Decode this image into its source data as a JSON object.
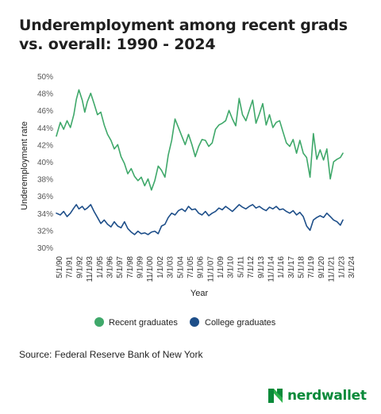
{
  "chart_data": {
    "type": "line",
    "title": "Underemployment among recent grads vs. overall: 1990 - 2024",
    "xlabel": "Year",
    "ylabel": "Underemployment rate",
    "ylim": [
      30,
      50
    ],
    "yticks": [
      "30%",
      "32%",
      "34%",
      "36%",
      "38%",
      "40%",
      "42%",
      "44%",
      "46%",
      "48%",
      "50%"
    ],
    "xticks": [
      "5/1/90",
      "7/1/91",
      "9/1/92",
      "11/1/93",
      "1/1/95",
      "3/1/96",
      "5/1/97",
      "7/1/98",
      "9/1/99",
      "11/1/00",
      "1/1/02",
      "3/1/03",
      "5/1/04",
      "7/1/05",
      "9/1/06",
      "11/1/07",
      "1/1/09",
      "3/1/10",
      "5/1/11",
      "7/1/12",
      "9/1/13",
      "11/1/14",
      "1/1/16",
      "3/1/17",
      "5/1/18",
      "7/1/19",
      "9/1/20",
      "11/1/21",
      "1/1/23",
      "3/1/24"
    ],
    "grid": false,
    "legend": "bottom",
    "series": [
      {
        "name": "Recent graduates",
        "color": "#3fa86a",
        "x": [
          1990.33,
          1990.8,
          1991.2,
          1991.6,
          1992.0,
          1992.4,
          1992.7,
          1993.0,
          1993.4,
          1993.7,
          1994.0,
          1994.4,
          1994.8,
          1995.2,
          1995.6,
          1996.0,
          1996.4,
          1996.8,
          1997.2,
          1997.6,
          1998.0,
          1998.4,
          1998.8,
          1999.2,
          1999.6,
          2000.0,
          2000.4,
          2000.8,
          2001.2,
          2001.6,
          2002.0,
          2002.4,
          2002.8,
          2003.2,
          2003.6,
          2004.0,
          2004.4,
          2004.8,
          2005.2,
          2005.6,
          2006.0,
          2006.4,
          2006.8,
          2007.2,
          2007.6,
          2008.0,
          2008.4,
          2008.8,
          2009.2,
          2009.6,
          2010.0,
          2010.4,
          2010.8,
          2011.2,
          2011.6,
          2012.0,
          2012.4,
          2012.8,
          2013.2,
          2013.6,
          2014.0,
          2014.4,
          2014.8,
          2015.2,
          2015.6,
          2016.0,
          2016.4,
          2016.8,
          2017.2,
          2017.6,
          2018.0,
          2018.4,
          2018.8,
          2019.2,
          2019.6,
          2020.0,
          2020.4,
          2020.8,
          2021.2,
          2021.6,
          2022.0,
          2022.4,
          2022.8,
          2023.2,
          2023.6,
          2024.0,
          2024.3
        ],
        "values": [
          43.0,
          44.6,
          43.8,
          44.8,
          44.0,
          45.5,
          47.3,
          48.4,
          47.2,
          45.8,
          47.0,
          48.0,
          46.8,
          45.5,
          45.8,
          44.3,
          43.2,
          42.5,
          41.5,
          42.0,
          40.6,
          39.8,
          38.6,
          39.2,
          38.3,
          37.8,
          38.2,
          37.2,
          38.0,
          36.7,
          37.8,
          39.5,
          39.0,
          38.2,
          40.8,
          42.5,
          45.0,
          44.0,
          43.0,
          42.0,
          43.2,
          42.0,
          40.6,
          41.8,
          42.6,
          42.5,
          41.8,
          42.2,
          43.8,
          44.3,
          44.5,
          44.8,
          46.0,
          45.0,
          44.2,
          47.4,
          45.5,
          44.8,
          46.0,
          47.2,
          44.5,
          45.6,
          46.8,
          44.3,
          45.5,
          44.0,
          44.6,
          44.8,
          43.5,
          42.2,
          41.8,
          42.6,
          41.0,
          42.5,
          41.0,
          40.5,
          38.2,
          43.3,
          40.3,
          41.4,
          40.2,
          41.5,
          38.0,
          40.0,
          40.3,
          40.5,
          41.0
        ]
      },
      {
        "name": "College graduates",
        "color": "#1d4e89",
        "x": [
          1990.33,
          1990.8,
          1991.2,
          1991.6,
          1992.0,
          1992.4,
          1992.7,
          1993.0,
          1993.4,
          1993.7,
          1994.0,
          1994.4,
          1994.8,
          1995.2,
          1995.6,
          1996.0,
          1996.4,
          1996.8,
          1997.2,
          1997.6,
          1998.0,
          1998.4,
          1998.8,
          1999.2,
          1999.6,
          2000.0,
          2000.4,
          2000.8,
          2001.2,
          2001.6,
          2002.0,
          2002.4,
          2002.8,
          2003.2,
          2003.6,
          2004.0,
          2004.4,
          2004.8,
          2005.2,
          2005.6,
          2006.0,
          2006.4,
          2006.8,
          2007.2,
          2007.6,
          2008.0,
          2008.4,
          2008.8,
          2009.2,
          2009.6,
          2010.0,
          2010.4,
          2010.8,
          2011.2,
          2011.6,
          2012.0,
          2012.4,
          2012.8,
          2013.2,
          2013.6,
          2014.0,
          2014.4,
          2014.8,
          2015.2,
          2015.6,
          2016.0,
          2016.4,
          2016.8,
          2017.2,
          2017.6,
          2018.0,
          2018.4,
          2018.8,
          2019.2,
          2019.6,
          2020.0,
          2020.4,
          2020.8,
          2021.2,
          2021.6,
          2022.0,
          2022.4,
          2022.8,
          2023.2,
          2023.6,
          2024.0,
          2024.3
        ],
        "values": [
          34.0,
          33.8,
          34.2,
          33.6,
          34.0,
          34.6,
          35.0,
          34.5,
          34.8,
          34.4,
          34.6,
          35.0,
          34.2,
          33.5,
          32.8,
          33.2,
          32.7,
          32.4,
          33.0,
          32.5,
          32.3,
          33.0,
          32.2,
          31.8,
          31.5,
          31.9,
          31.6,
          31.7,
          31.5,
          31.8,
          31.9,
          31.6,
          32.5,
          32.7,
          33.5,
          34.0,
          33.8,
          34.3,
          34.5,
          34.2,
          34.8,
          34.4,
          34.5,
          34.0,
          33.8,
          34.2,
          33.7,
          34.0,
          34.2,
          34.6,
          34.4,
          34.8,
          34.5,
          34.2,
          34.6,
          35.0,
          34.7,
          34.5,
          34.8,
          35.0,
          34.6,
          34.8,
          34.5,
          34.3,
          34.7,
          34.5,
          34.8,
          34.4,
          34.5,
          34.2,
          34.0,
          34.3,
          33.8,
          34.1,
          33.6,
          32.5,
          32.0,
          33.2,
          33.5,
          33.7,
          33.5,
          34.0,
          33.6,
          33.2,
          33.0,
          32.6,
          33.2
        ]
      }
    ]
  },
  "source": "Source: Federal Reserve Bank of New York",
  "brand": {
    "name": "nerdwallet",
    "color": "#0a8a3a"
  }
}
